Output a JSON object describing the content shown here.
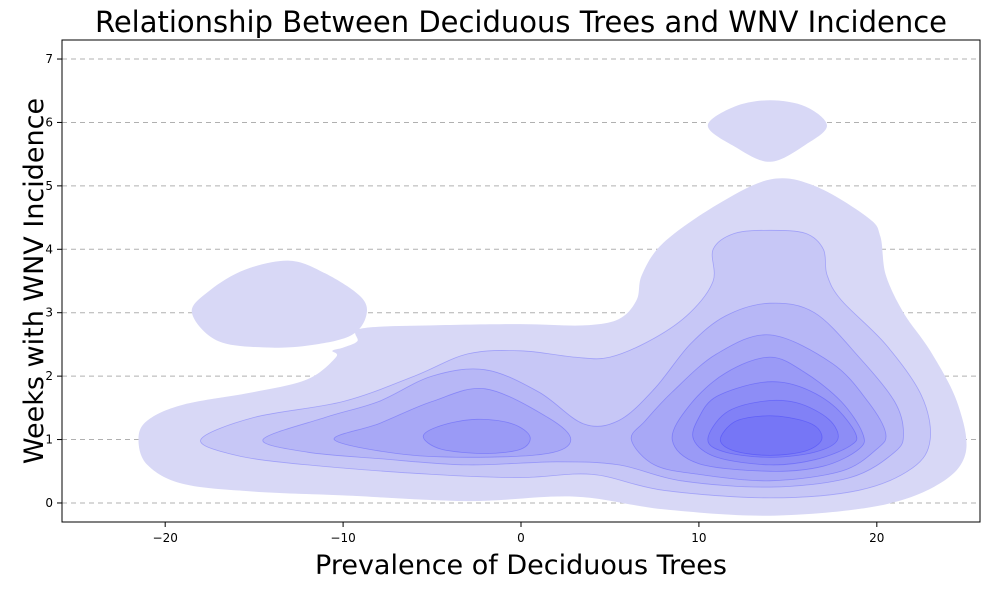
{
  "chart_data": {
    "type": "kde-contour",
    "title": "Relationship Between Deciduous Trees and WNV Incidence",
    "xlabel": "Prevalence of Deciduous Trees",
    "ylabel": "Weeks with WNV Incidence",
    "xlim": [
      -25.8,
      25.8
    ],
    "ylim": [
      -0.3,
      7.3
    ],
    "xticks": [
      -20,
      -10,
      0,
      10,
      20
    ],
    "yticks": [
      0,
      1,
      2,
      3,
      4,
      5,
      6,
      7
    ],
    "grid": "y-dashed",
    "fill_color": "#0000ff",
    "levels": [
      {
        "level": 1,
        "polygons": [
          [
            [
              -21.5,
              1.0
            ],
            [
              -21.0,
              0.6
            ],
            [
              -19.0,
              0.3
            ],
            [
              -15.0,
              0.18
            ],
            [
              -10.0,
              0.12
            ],
            [
              -3.0,
              0.03
            ],
            [
              3.0,
              0.1
            ],
            [
              8.0,
              -0.1
            ],
            [
              14.0,
              -0.2
            ],
            [
              20.0,
              -0.05
            ],
            [
              23.5,
              0.3
            ],
            [
              25.0,
              0.8
            ],
            [
              24.5,
              1.6
            ],
            [
              23.0,
              2.4
            ],
            [
              21.5,
              3.0
            ],
            [
              20.5,
              3.6
            ],
            [
              20.2,
              4.2
            ],
            [
              19.5,
              4.5
            ],
            [
              16.5,
              5.0
            ],
            [
              14.0,
              5.1
            ],
            [
              11.0,
              4.7
            ],
            [
              8.0,
              4.1
            ],
            [
              6.8,
              3.6
            ],
            [
              6.5,
              3.2
            ],
            [
              5.5,
              2.9
            ],
            [
              3.5,
              2.8
            ],
            [
              0.0,
              2.82
            ],
            [
              -5.0,
              2.8
            ],
            [
              -9.0,
              2.75
            ],
            [
              -9.2,
              2.55
            ],
            [
              -10.0,
              2.45
            ],
            [
              -10.6,
              2.4
            ],
            [
              -10.4,
              2.3
            ],
            [
              -12.0,
              1.95
            ],
            [
              -15.0,
              1.75
            ],
            [
              -19.0,
              1.55
            ],
            [
              -21.0,
              1.3
            ]
          ],
          [
            [
              -18.5,
              3.0
            ],
            [
              -17.5,
              3.35
            ],
            [
              -15.5,
              3.68
            ],
            [
              -13.0,
              3.82
            ],
            [
              -11.0,
              3.62
            ],
            [
              -9.0,
              3.25
            ],
            [
              -8.7,
              2.95
            ],
            [
              -9.5,
              2.65
            ],
            [
              -11.5,
              2.5
            ],
            [
              -14.0,
              2.45
            ],
            [
              -17.0,
              2.55
            ]
          ],
          [
            [
              10.5,
              5.95
            ],
            [
              12.0,
              6.25
            ],
            [
              14.0,
              6.35
            ],
            [
              16.0,
              6.25
            ],
            [
              17.2,
              5.95
            ],
            [
              16.0,
              5.65
            ],
            [
              14.0,
              5.38
            ],
            [
              12.0,
              5.62
            ]
          ]
        ]
      },
      {
        "level": 2,
        "polygons": [
          [
            [
              -18.0,
              1.0
            ],
            [
              -16.0,
              0.75
            ],
            [
              -12.0,
              0.6
            ],
            [
              -5.0,
              0.45
            ],
            [
              0.0,
              0.4
            ],
            [
              4.0,
              0.45
            ],
            [
              8.0,
              0.2
            ],
            [
              14.0,
              0.08
            ],
            [
              19.0,
              0.2
            ],
            [
              22.0,
              0.55
            ],
            [
              23.0,
              1.0
            ],
            [
              22.5,
              1.7
            ],
            [
              20.5,
              2.5
            ],
            [
              18.0,
              3.2
            ],
            [
              17.2,
              3.6
            ],
            [
              17.0,
              4.0
            ],
            [
              16.0,
              4.25
            ],
            [
              14.0,
              4.3
            ],
            [
              12.0,
              4.25
            ],
            [
              10.8,
              4.0
            ],
            [
              10.8,
              3.5
            ],
            [
              9.5,
              3.0
            ],
            [
              7.5,
              2.6
            ],
            [
              5.0,
              2.3
            ],
            [
              3.0,
              2.3
            ],
            [
              0.0,
              2.4
            ],
            [
              -3.0,
              2.35
            ],
            [
              -6.0,
              2.0
            ],
            [
              -10.0,
              1.6
            ],
            [
              -15.0,
              1.35
            ]
          ]
        ]
      },
      {
        "level": 3,
        "polygons": [
          [
            [
              -14.5,
              1.0
            ],
            [
              -12.0,
              0.8
            ],
            [
              -8.0,
              0.7
            ],
            [
              -3.0,
              0.6
            ],
            [
              2.0,
              0.65
            ],
            [
              5.5,
              0.6
            ],
            [
              9.0,
              0.35
            ],
            [
              14.0,
              0.25
            ],
            [
              18.5,
              0.4
            ],
            [
              21.0,
              0.8
            ],
            [
              21.5,
              1.1
            ],
            [
              21.0,
              1.6
            ],
            [
              19.0,
              2.3
            ],
            [
              16.5,
              3.0
            ],
            [
              14.0,
              3.15
            ],
            [
              11.5,
              2.95
            ],
            [
              9.5,
              2.5
            ],
            [
              7.5,
              1.8
            ],
            [
              5.5,
              1.3
            ],
            [
              3.5,
              1.25
            ],
            [
              1.0,
              1.75
            ],
            [
              -2.0,
              2.1
            ],
            [
              -5.0,
              2.0
            ],
            [
              -8.0,
              1.6
            ],
            [
              -11.0,
              1.35
            ]
          ]
        ]
      },
      {
        "level": 4,
        "polygons": [
          [
            [
              -10.5,
              1.0
            ],
            [
              -7.0,
              0.78
            ],
            [
              -3.0,
              0.72
            ],
            [
              1.5,
              0.78
            ],
            [
              2.8,
              1.0
            ],
            [
              1.5,
              1.35
            ],
            [
              -2.0,
              1.8
            ],
            [
              -5.0,
              1.6
            ],
            [
              -8.0,
              1.25
            ]
          ],
          [
            [
              6.2,
              1.0
            ],
            [
              7.5,
              0.6
            ],
            [
              10.0,
              0.45
            ],
            [
              14.0,
              0.35
            ],
            [
              18.0,
              0.5
            ],
            [
              20.0,
              0.85
            ],
            [
              20.5,
              1.1
            ],
            [
              19.5,
              1.6
            ],
            [
              17.5,
              2.2
            ],
            [
              14.0,
              2.65
            ],
            [
              11.0,
              2.35
            ],
            [
              8.5,
              1.75
            ],
            [
              7.0,
              1.3
            ]
          ]
        ]
      },
      {
        "level": 5,
        "polygons": [
          [
            [
              -5.5,
              1.05
            ],
            [
              -4.5,
              0.85
            ],
            [
              -2.0,
              0.78
            ],
            [
              0.0,
              0.85
            ],
            [
              0.5,
              1.05
            ],
            [
              -0.5,
              1.25
            ],
            [
              -2.5,
              1.32
            ],
            [
              -4.5,
              1.22
            ]
          ],
          [
            [
              8.5,
              1.0
            ],
            [
              10.0,
              0.62
            ],
            [
              14.0,
              0.5
            ],
            [
              17.0,
              0.58
            ],
            [
              19.0,
              0.85
            ],
            [
              19.2,
              1.1
            ],
            [
              18.0,
              1.6
            ],
            [
              16.0,
              2.05
            ],
            [
              14.0,
              2.3
            ],
            [
              11.5,
              2.05
            ],
            [
              9.5,
              1.55
            ]
          ]
        ]
      },
      {
        "level": 6,
        "polygons": [
          [
            [
              9.7,
              1.0
            ],
            [
              11.0,
              0.72
            ],
            [
              14.0,
              0.6
            ],
            [
              16.5,
              0.68
            ],
            [
              18.5,
              0.9
            ],
            [
              18.8,
              1.1
            ],
            [
              17.5,
              1.55
            ],
            [
              15.5,
              1.85
            ],
            [
              13.5,
              1.9
            ],
            [
              11.0,
              1.68
            ],
            [
              10.0,
              1.35
            ]
          ]
        ]
      },
      {
        "level": 7,
        "polygons": [
          [
            [
              10.5,
              1.0
            ],
            [
              11.5,
              0.8
            ],
            [
              14.0,
              0.72
            ],
            [
              16.5,
              0.8
            ],
            [
              17.8,
              1.0
            ],
            [
              17.3,
              1.32
            ],
            [
              15.5,
              1.58
            ],
            [
              13.5,
              1.6
            ],
            [
              11.5,
              1.42
            ]
          ]
        ]
      },
      {
        "level": 8,
        "polygons": [
          [
            [
              11.2,
              1.0
            ],
            [
              12.0,
              0.82
            ],
            [
              14.0,
              0.75
            ],
            [
              16.0,
              0.82
            ],
            [
              16.9,
              1.0
            ],
            [
              16.5,
              1.22
            ],
            [
              15.0,
              1.35
            ],
            [
              13.5,
              1.37
            ],
            [
              12.0,
              1.28
            ]
          ]
        ]
      }
    ]
  }
}
